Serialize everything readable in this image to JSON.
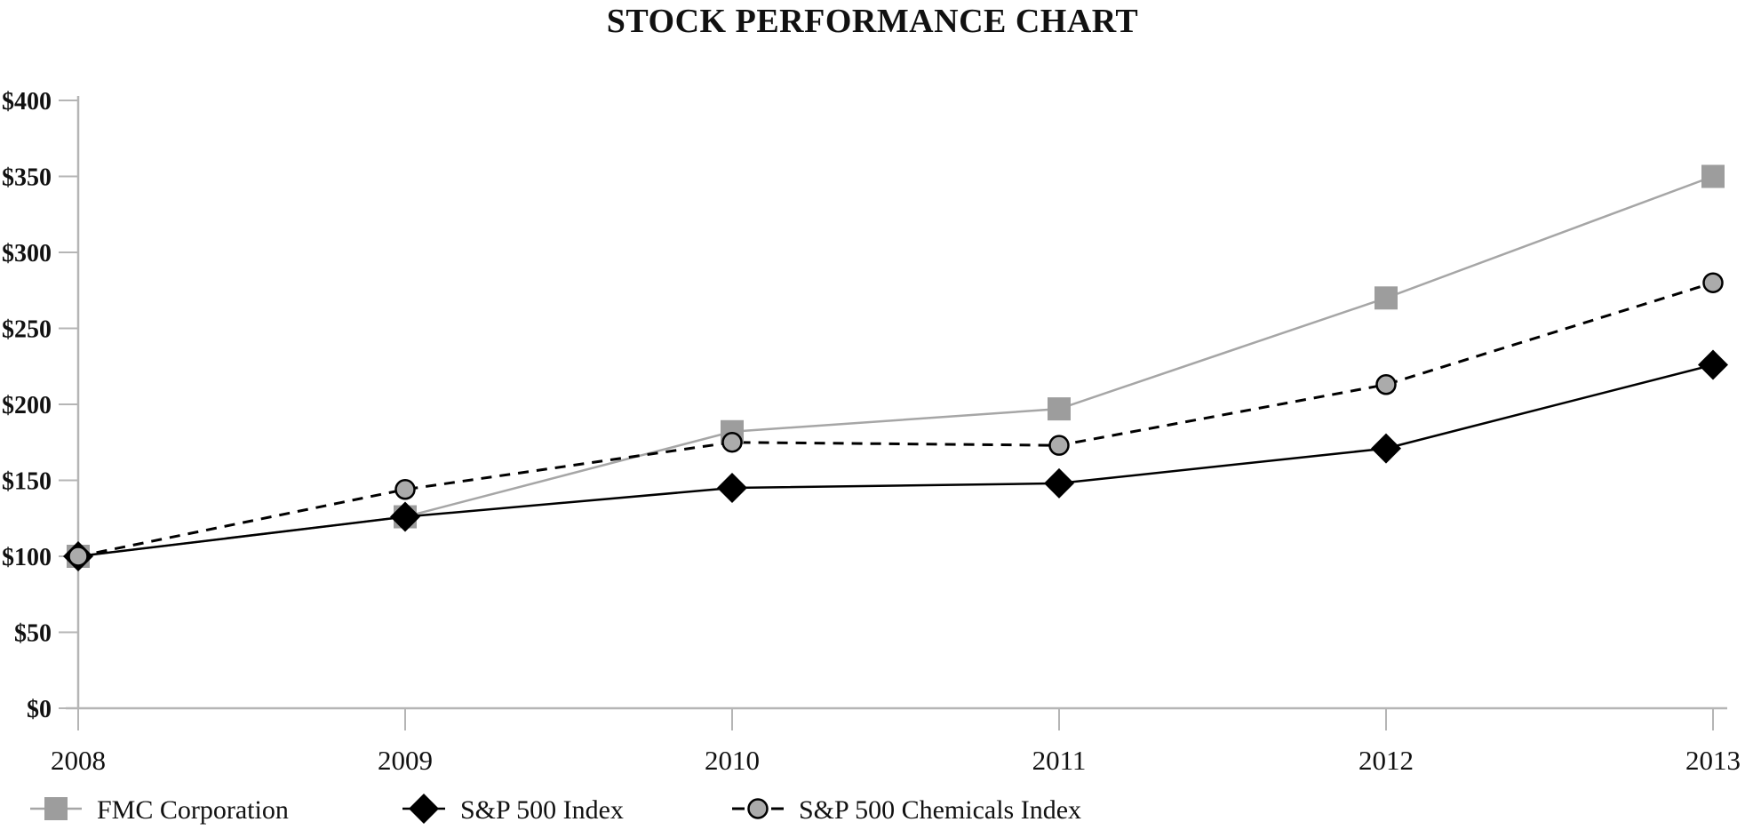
{
  "page": {
    "title": "STOCK PERFORMANCE CHART"
  },
  "chart_data": {
    "type": "line",
    "title": "STOCK PERFORMANCE CHART",
    "x": [
      2008,
      2009,
      2010,
      2011,
      2012,
      2013
    ],
    "x_tick_labels": [
      "2008",
      "2009",
      "2010",
      "2011",
      "2012",
      "2013"
    ],
    "y_tick_labels": [
      "$0",
      "$50",
      "$100",
      "$150",
      "$200",
      "$250",
      "$300",
      "$350",
      "$400"
    ],
    "y_ticks": [
      0,
      50,
      100,
      150,
      200,
      250,
      300,
      350,
      400
    ],
    "ylim": [
      0,
      400
    ],
    "xlabel": "",
    "ylabel": "",
    "grid": false,
    "legend_position": "bottom-left",
    "axis_color": "#b5b5b5",
    "text_color": "#111111",
    "series": [
      {
        "name": "FMC Corporation",
        "marker": "square",
        "line_style": "solid",
        "line_color": "#a6a6a6",
        "marker_fill": "#9d9d9d",
        "marker_stroke": "none",
        "values": [
          100,
          126,
          182,
          197,
          270,
          350
        ]
      },
      {
        "name": "S&P 500 Index",
        "marker": "diamond",
        "line_style": "solid",
        "line_color": "#000000",
        "marker_fill": "#000000",
        "marker_stroke": "none",
        "values": [
          100,
          126,
          145,
          148,
          171,
          226
        ]
      },
      {
        "name": "S&P 500 Chemicals Index",
        "marker": "circle",
        "line_style": "dashed",
        "line_color": "#000000",
        "marker_fill": "#ababab",
        "marker_stroke": "#000000",
        "values": [
          100,
          144,
          175,
          173,
          213,
          280
        ]
      }
    ]
  }
}
